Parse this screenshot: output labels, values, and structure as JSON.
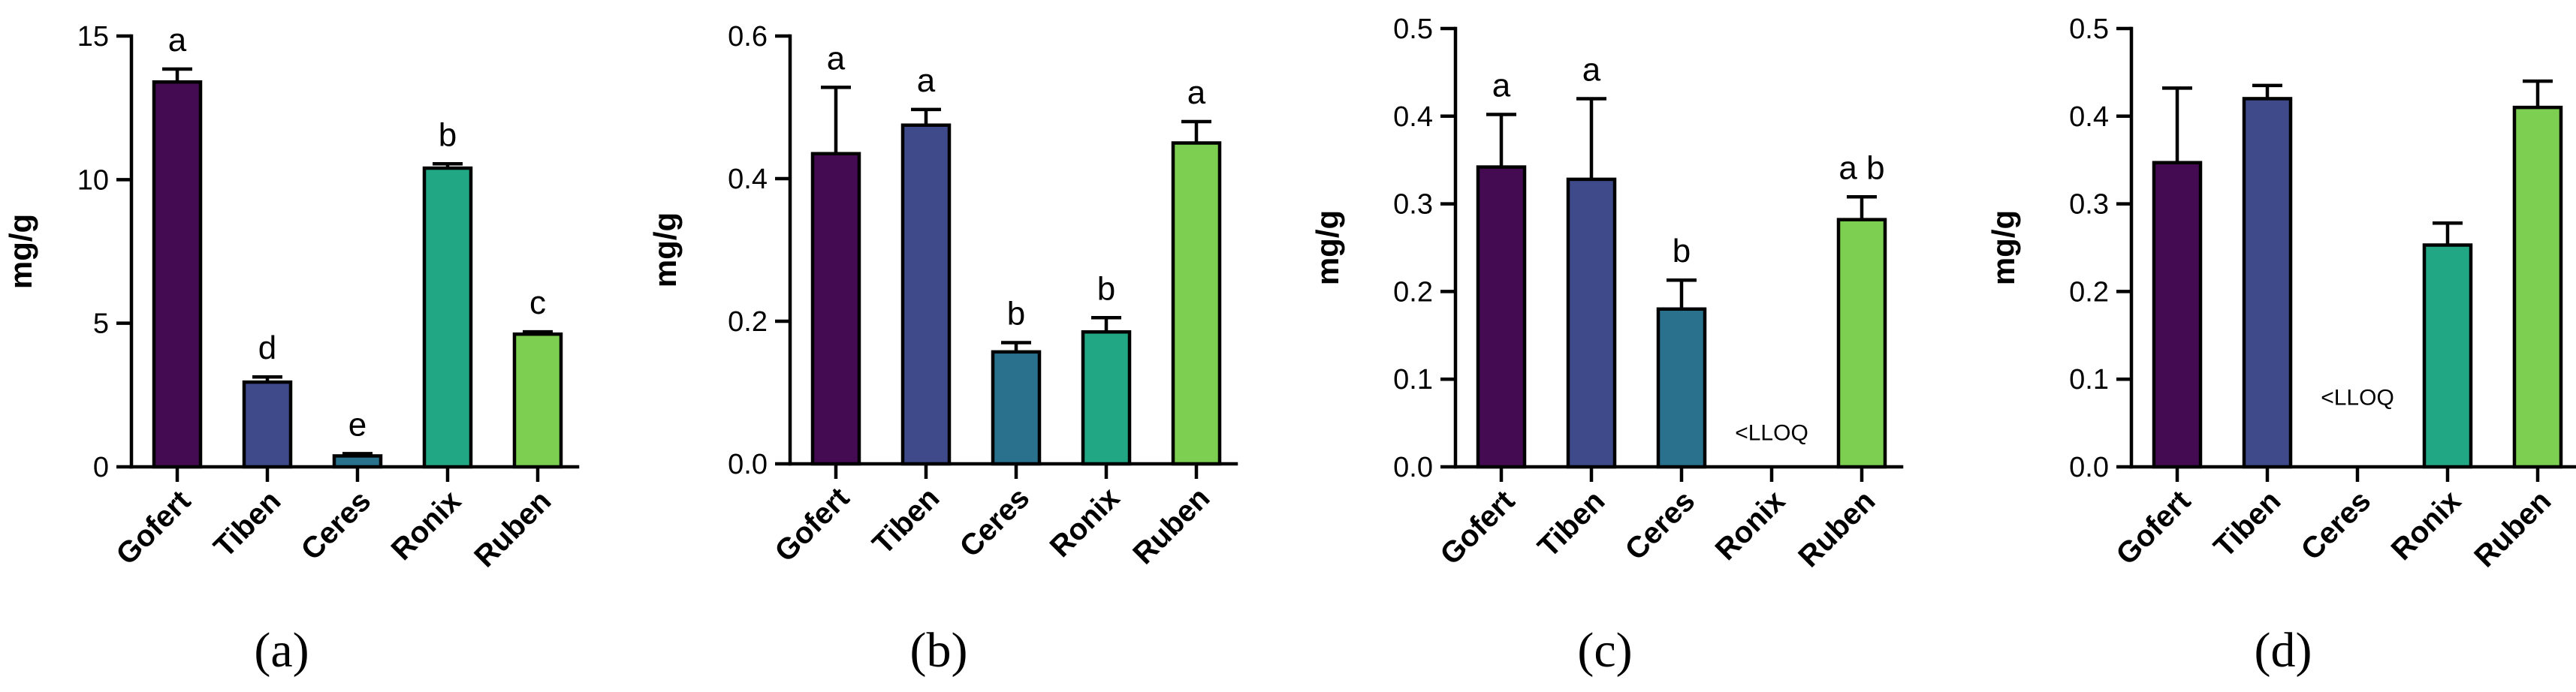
{
  "colors": {
    "Gofert": "#440a52",
    "Tiben": "#3e4a8a",
    "Ceres": "#2a718e",
    "Ronix": "#22a784",
    "Ruben": "#7ccf50"
  },
  "chart_data": [
    {
      "type": "bar",
      "panel_label": "(a)",
      "ylabel": "mg/g",
      "ylim": [
        0,
        15
      ],
      "yticks": [
        0,
        5,
        10,
        15
      ],
      "ytick_labels": [
        "0",
        "5",
        "10",
        "15"
      ],
      "categories": [
        "Gofert",
        "Tiben",
        "Ceres",
        "Ronix",
        "Ruben"
      ],
      "values": [
        13.4,
        2.95,
        0.38,
        10.4,
        4.62
      ],
      "errors": [
        0.45,
        0.18,
        0.08,
        0.15,
        0.08
      ],
      "letters": [
        "a",
        "d",
        "e",
        "b",
        "c"
      ],
      "annotations": []
    },
    {
      "type": "bar",
      "panel_label": "(b)",
      "ylabel": "mg/g",
      "ylim": [
        0,
        0.6
      ],
      "yticks": [
        0,
        0.2,
        0.4,
        0.6
      ],
      "ytick_labels": [
        "0.0",
        "0.2",
        "0.4",
        "0.6"
      ],
      "categories": [
        "Gofert",
        "Tiben",
        "Ceres",
        "Ronix",
        "Ruben"
      ],
      "values": [
        0.435,
        0.475,
        0.157,
        0.185,
        0.45
      ],
      "errors": [
        0.093,
        0.022,
        0.013,
        0.02,
        0.03
      ],
      "letters": [
        "a",
        "a",
        "b",
        "b",
        "a"
      ],
      "annotations": []
    },
    {
      "type": "bar",
      "panel_label": "(c)",
      "ylabel": "mg/g",
      "ylim": [
        0,
        0.5
      ],
      "yticks": [
        0,
        0.1,
        0.2,
        0.3,
        0.4,
        0.5
      ],
      "ytick_labels": [
        "0.0",
        "0.1",
        "0.2",
        "0.3",
        "0.4",
        "0.5"
      ],
      "categories": [
        "Gofert",
        "Tiben",
        "Ceres",
        "Ronix",
        "Ruben"
      ],
      "values": [
        0.342,
        0.328,
        0.18,
        null,
        0.282
      ],
      "errors": [
        0.06,
        0.092,
        0.033,
        null,
        0.026
      ],
      "letters": [
        "a",
        "a",
        "b",
        "",
        "a b"
      ],
      "annotations": [
        {
          "category": "Ronix",
          "text": "<LLOQ",
          "y": 0.04
        }
      ]
    },
    {
      "type": "bar",
      "panel_label": "(d)",
      "ylabel": "mg/g",
      "ylim": [
        0,
        0.5
      ],
      "yticks": [
        0,
        0.1,
        0.2,
        0.3,
        0.4,
        0.5
      ],
      "ytick_labels": [
        "0.0",
        "0.1",
        "0.2",
        "0.3",
        "0.4",
        "0.5"
      ],
      "categories": [
        "Gofert",
        "Tiben",
        "Ceres",
        "Ronix",
        "Ruben"
      ],
      "values": [
        0.347,
        0.42,
        null,
        0.253,
        0.41
      ],
      "errors": [
        0.085,
        0.015,
        null,
        0.025,
        0.03
      ],
      "letters": [
        "",
        "",
        "",
        "",
        ""
      ],
      "annotations": [
        {
          "category": "Ceres",
          "text": "<LLOQ",
          "y": 0.08
        }
      ]
    }
  ]
}
